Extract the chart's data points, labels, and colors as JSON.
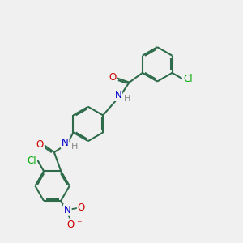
{
  "bg_color": "#f0f0f0",
  "bond_color": "#2d6b4a",
  "bond_width": 1.5,
  "dbo": 0.055,
  "atom_colors": {
    "N": "#0000cc",
    "O": "#cc0000",
    "Cl": "#00aa00",
    "H": "#888888"
  },
  "font_size": 8.5,
  "fig_size": [
    3.0,
    3.0
  ],
  "dpi": 100,
  "xlim": [
    0,
    10
  ],
  "ylim": [
    0,
    10
  ]
}
